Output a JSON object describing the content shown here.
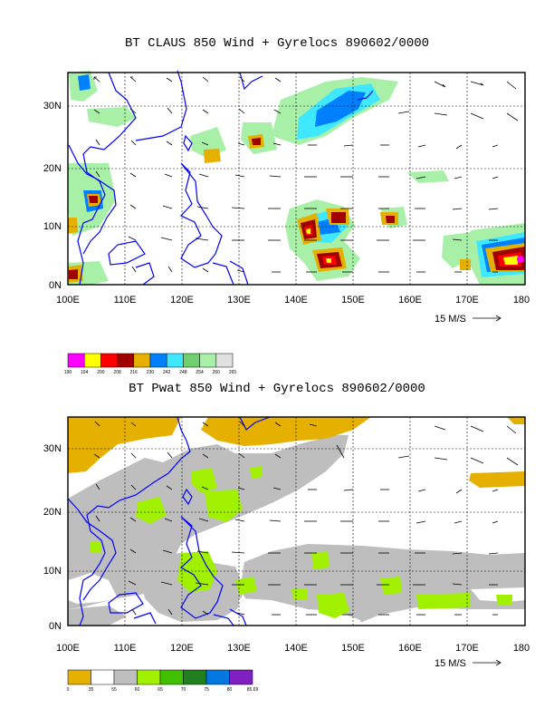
{
  "top_panel": {
    "title": "BT CLAUS 850 Wind + Gyrelocs 890602/0000",
    "lat_labels": [
      "30N",
      "20N",
      "10N",
      "0N"
    ],
    "lon_labels": [
      "100E",
      "110E",
      "120E",
      "130E",
      "140E",
      "150E",
      "160E",
      "170E",
      "180"
    ],
    "vector_ref": "15 M/S",
    "colorbar": {
      "labels": [
        "190",
        "194",
        "200",
        "208",
        "216",
        "230",
        "242",
        "248",
        "254",
        "260",
        "265"
      ],
      "colors": [
        "#ff00ff",
        "#ffff00",
        "#ff0000",
        "#a00000",
        "#e6b000",
        "#0080ff",
        "#40e8ff",
        "#70d070",
        "#a8f0a8",
        "#e0e0e0"
      ]
    }
  },
  "bottom_panel": {
    "title": "BT Pwat 850 Wind + Gyrelocs 890602/0000",
    "lat_labels": [
      "30N",
      "20N",
      "10N",
      "0N"
    ],
    "lon_labels": [
      "100E",
      "110E",
      "120E",
      "130E",
      "140E",
      "150E",
      "160E",
      "170E",
      "180"
    ],
    "vector_ref": "15 M/S",
    "colorbar": {
      "labels": [
        "0",
        "35",
        "55",
        "60",
        "65",
        "70",
        "75",
        "80",
        "85.69"
      ],
      "colors": [
        "#e6b000",
        "#ffffff",
        "#bebebe",
        "#a0f000",
        "#40c000",
        "#208020",
        "#0078e0",
        "#8020c0"
      ]
    }
  },
  "colors": {
    "coastline": "#0000ff",
    "frame": "#000000",
    "grid": "#000000"
  }
}
